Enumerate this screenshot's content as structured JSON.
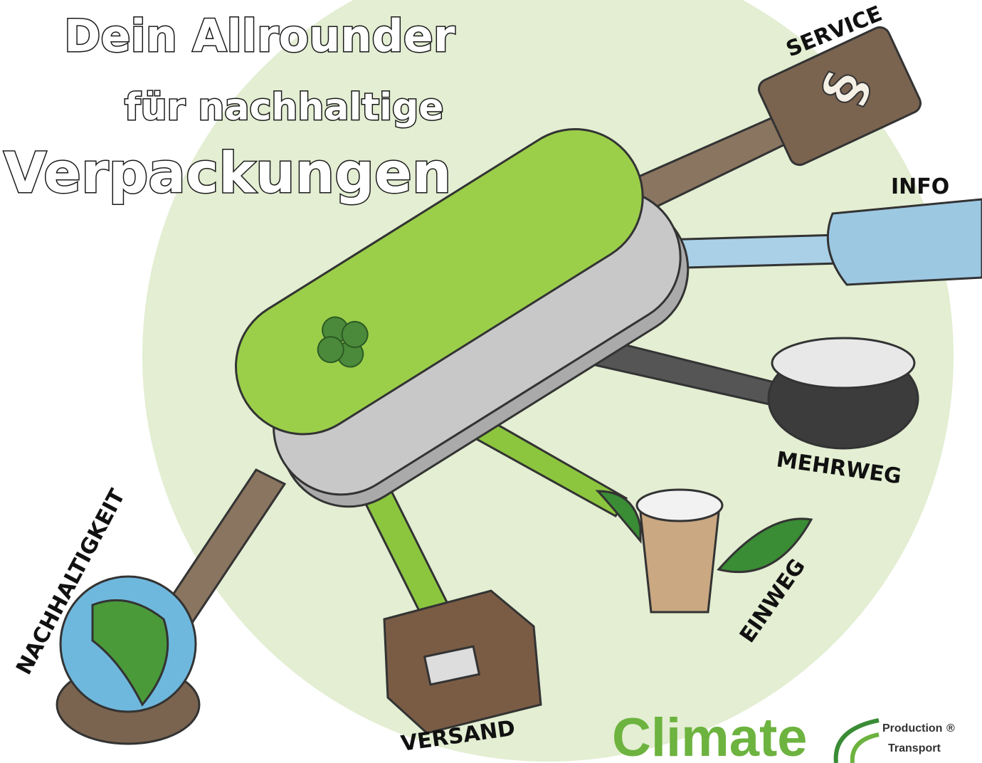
{
  "header": {
    "title_lines": [
      "Dein Allrounder",
      "für nachhaltige",
      "Verpackungen"
    ]
  },
  "tools": [
    "SERVICE",
    "INFO",
    "MEHRWEG",
    "EINWEG",
    "VERSAND",
    "NACHHALTIGKEIT"
  ],
  "logo": {
    "brand": "Climate",
    "lines": [
      "Production",
      "Transport"
    ],
    "mark": "®"
  }
}
